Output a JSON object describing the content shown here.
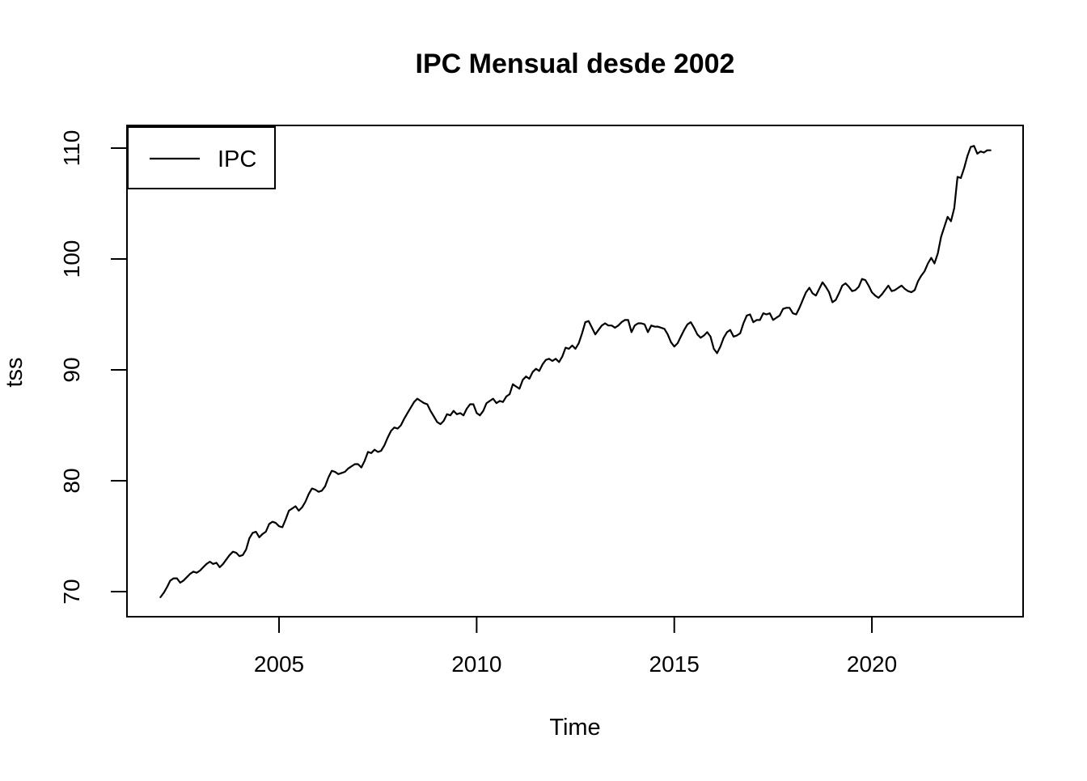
{
  "chart_data": {
    "type": "line",
    "title": "IPC Mensual desde 2002",
    "xlabel": "Time",
    "ylabel": "tss",
    "background_color": "#ffffff",
    "line_color": "#000000",
    "axis_color": "#000000",
    "grid": "off",
    "legend": {
      "position": "topleft",
      "entries": [
        {
          "label": "IPC",
          "color": "#000000"
        }
      ]
    },
    "x_ticks": [
      {
        "value": 2005,
        "label": "2005"
      },
      {
        "value": 2010,
        "label": "2010"
      },
      {
        "value": 2015,
        "label": "2015"
      },
      {
        "value": 2020,
        "label": "2020"
      }
    ],
    "y_ticks": [
      {
        "value": 70,
        "label": "70"
      },
      {
        "value": 80,
        "label": "80"
      },
      {
        "value": 90,
        "label": "90"
      },
      {
        "value": 100,
        "label": "100"
      },
      {
        "value": 110,
        "label": "110"
      }
    ],
    "xlim": [
      2001.15,
      2023.84
    ],
    "ylim": [
      67.7,
      112.0
    ],
    "series": [
      {
        "name": "IPC",
        "color": "#000000",
        "start_year": 2002,
        "frequency": 12,
        "values": [
          69.5,
          69.9,
          70.4,
          71.0,
          71.2,
          71.2,
          70.8,
          71.0,
          71.3,
          71.6,
          71.8,
          71.7,
          71.9,
          72.2,
          72.5,
          72.7,
          72.5,
          72.6,
          72.2,
          72.5,
          72.9,
          73.3,
          73.6,
          73.5,
          73.2,
          73.3,
          73.8,
          74.8,
          75.3,
          75.4,
          74.9,
          75.2,
          75.4,
          76.1,
          76.3,
          76.2,
          75.9,
          75.8,
          76.5,
          77.3,
          77.5,
          77.7,
          77.3,
          77.6,
          78.1,
          78.8,
          79.3,
          79.2,
          79.0,
          79.1,
          79.5,
          80.3,
          80.9,
          80.8,
          80.6,
          80.7,
          80.8,
          81.1,
          81.3,
          81.5,
          81.5,
          81.2,
          81.8,
          82.6,
          82.5,
          82.8,
          82.6,
          82.7,
          83.2,
          83.9,
          84.5,
          84.8,
          84.7,
          85.0,
          85.6,
          86.1,
          86.6,
          87.1,
          87.4,
          87.2,
          87.0,
          86.9,
          86.3,
          85.8,
          85.3,
          85.1,
          85.4,
          86.0,
          85.9,
          86.3,
          86.0,
          86.1,
          85.9,
          86.5,
          86.9,
          86.9,
          86.1,
          85.9,
          86.3,
          87.0,
          87.2,
          87.4,
          87.0,
          87.2,
          87.1,
          87.6,
          87.8,
          88.7,
          88.5,
          88.3,
          89.1,
          89.4,
          89.2,
          89.8,
          90.1,
          89.9,
          90.5,
          90.9,
          91.0,
          90.8,
          91.0,
          90.7,
          91.2,
          92.0,
          91.9,
          92.2,
          91.9,
          92.4,
          93.3,
          94.3,
          94.4,
          93.8,
          93.2,
          93.6,
          94.0,
          94.2,
          94.0,
          94.0,
          93.8,
          94.0,
          94.3,
          94.5,
          94.5,
          93.4,
          94.0,
          94.2,
          94.2,
          94.1,
          93.4,
          94.0,
          93.9,
          93.9,
          93.8,
          93.7,
          93.2,
          92.5,
          92.1,
          92.4,
          93.0,
          93.6,
          94.1,
          94.3,
          93.8,
          93.2,
          92.9,
          93.1,
          93.4,
          93.0,
          91.9,
          91.5,
          92.1,
          92.9,
          93.4,
          93.6,
          93.0,
          93.1,
          93.3,
          94.2,
          94.9,
          95.0,
          94.3,
          94.5,
          94.5,
          95.1,
          95.0,
          95.1,
          94.5,
          94.7,
          94.9,
          95.5,
          95.6,
          95.6,
          95.1,
          95.0,
          95.6,
          96.3,
          97.0,
          97.4,
          96.9,
          96.7,
          97.3,
          97.9,
          97.5,
          97.0,
          96.1,
          96.3,
          96.9,
          97.6,
          97.8,
          97.5,
          97.1,
          97.2,
          97.5,
          98.2,
          98.1,
          97.6,
          97.0,
          96.7,
          96.5,
          96.8,
          97.2,
          97.6,
          97.1,
          97.2,
          97.4,
          97.6,
          97.3,
          97.1,
          97.0,
          97.2,
          98.0,
          98.5,
          98.9,
          99.6,
          100.1,
          99.6,
          100.5,
          102.0,
          102.9,
          103.8,
          103.4,
          104.6,
          107.4,
          107.3,
          108.2,
          109.3,
          110.1,
          110.2,
          109.5,
          109.7,
          109.6,
          109.8,
          109.8
        ]
      }
    ]
  }
}
